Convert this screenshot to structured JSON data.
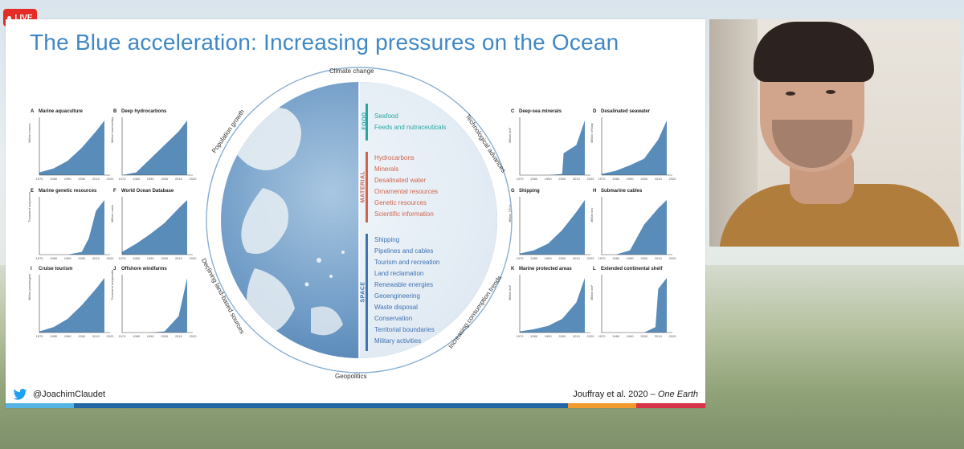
{
  "stream": {
    "live_label": "LIVE"
  },
  "slide": {
    "title": "The Blue acceleration: Increasing pressures on the Ocean",
    "footer_handle": "@JoachimClaudet",
    "footer_citation": "Jouffray et al. 2020 – ",
    "footer_journal": "One Earth",
    "arc_labels": {
      "top": "Climate change",
      "bottom": "Geopolitics",
      "left_top": "Population growth",
      "left_bottom": "Declining land-based sources",
      "right_top": "Technological advances",
      "right_bottom": "Increasing consumption trends"
    },
    "categories": [
      {
        "name": "FOOD",
        "color": "#2aa8a0",
        "items": [
          "Seafood",
          "Feeds and nutraceuticals"
        ]
      },
      {
        "name": "MATERIAL",
        "color": "#d0654e",
        "items": [
          "Hydrocarbons",
          "Minerals",
          "Desalinated water",
          "Ornamental resources",
          "Genetic resources",
          "Scientific information"
        ]
      },
      {
        "name": "SPACE",
        "color": "#3f73b3",
        "items": [
          "Shipping",
          "Pipelines and cables",
          "Tourism and recreation",
          "Land reclamation",
          "Renewable energies",
          "Geoengineering",
          "Waste disposal",
          "Conservation",
          "Territorial boundaries",
          "Military activities"
        ]
      }
    ],
    "colors": {
      "title": "#3f88c5",
      "chart_fill": "#2f6fa8",
      "globe": "#7fa9cf",
      "strip": [
        "#55b3e6",
        "#2166a5",
        "#f29a2e",
        "#d9324b"
      ]
    }
  },
  "chart_data": [
    {
      "type": "area",
      "letter": "A",
      "title": "Marine aquaculture",
      "ylabel": "Million tonnes",
      "x": [
        1970,
        1980,
        1990,
        2000,
        2010,
        2016
      ],
      "y": [
        0.05,
        0.12,
        0.26,
        0.5,
        0.8,
        1.0
      ]
    },
    {
      "type": "area",
      "letter": "B",
      "title": "Deep hydrocarbons",
      "ylabel": "Million barrels/day",
      "x": [
        1970,
        1980,
        1990,
        2000,
        2010,
        2016
      ],
      "y": [
        0.0,
        0.05,
        0.3,
        0.55,
        0.8,
        1.0
      ]
    },
    {
      "type": "area",
      "letter": "C",
      "title": "Deep-sea minerals",
      "ylabel": "Million km²",
      "x": [
        1970,
        1980,
        1990,
        2000,
        2001,
        2010,
        2016
      ],
      "y": [
        0,
        0,
        0,
        0.02,
        0.4,
        0.55,
        1.0
      ]
    },
    {
      "type": "area",
      "letter": "D",
      "title": "Desalinated seawater",
      "ylabel": "Million m³/day",
      "x": [
        1970,
        1980,
        1990,
        2000,
        2010,
        2016
      ],
      "y": [
        0.02,
        0.08,
        0.18,
        0.3,
        0.65,
        1.0
      ]
    },
    {
      "type": "area",
      "letter": "E",
      "title": "Marine genetic resources",
      "ylabel": "Thousand sequences",
      "x": [
        1970,
        1980,
        1990,
        2000,
        2005,
        2010,
        2016
      ],
      "y": [
        0,
        0,
        0,
        0.05,
        0.3,
        0.8,
        1.0
      ]
    },
    {
      "type": "area",
      "letter": "F",
      "title": "World Ocean Database",
      "ylabel": "Million casts",
      "x": [
        1970,
        1980,
        1990,
        2000,
        2010,
        2016
      ],
      "y": [
        0.05,
        0.2,
        0.38,
        0.58,
        0.85,
        1.0
      ]
    },
    {
      "type": "area",
      "letter": "G",
      "title": "Shipping",
      "ylabel": "Million TEUs",
      "x": [
        1970,
        1980,
        1990,
        2000,
        2010,
        2016
      ],
      "y": [
        0.02,
        0.08,
        0.2,
        0.45,
        0.78,
        1.0
      ]
    },
    {
      "type": "area",
      "letter": "H",
      "title": "Submarine cables",
      "ylabel": "Million km",
      "x": [
        1970,
        1980,
        1990,
        2000,
        2010,
        2016
      ],
      "y": [
        0,
        0,
        0.08,
        0.55,
        0.85,
        1.0
      ]
    },
    {
      "type": "area",
      "letter": "I",
      "title": "Cruise tourism",
      "ylabel": "Million passengers",
      "x": [
        1970,
        1980,
        1990,
        2000,
        2010,
        2016
      ],
      "y": [
        0.02,
        0.1,
        0.25,
        0.5,
        0.8,
        1.0
      ]
    },
    {
      "type": "area",
      "letter": "J",
      "title": "Offshore windfarms",
      "ylabel": "Thousand megawatts",
      "x": [
        1970,
        1980,
        1990,
        2000,
        2010,
        2016
      ],
      "y": [
        0,
        0,
        0,
        0.02,
        0.3,
        1.0
      ]
    },
    {
      "type": "area",
      "letter": "K",
      "title": "Marine protected areas",
      "ylabel": "Million km²",
      "x": [
        1970,
        1980,
        1990,
        2000,
        2010,
        2016
      ],
      "y": [
        0.02,
        0.06,
        0.12,
        0.25,
        0.55,
        1.0
      ]
    },
    {
      "type": "area",
      "letter": "L",
      "title": "Extended continental shelf",
      "ylabel": "Million km²",
      "x": [
        1970,
        1980,
        1990,
        2000,
        2008,
        2010,
        2016
      ],
      "y": [
        0,
        0,
        0,
        0,
        0.1,
        0.8,
        1.0
      ]
    }
  ]
}
